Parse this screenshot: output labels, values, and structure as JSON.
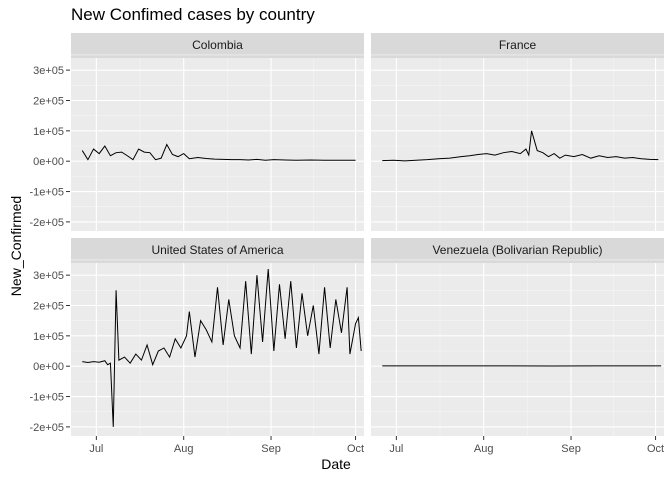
{
  "chart_data": {
    "type": "line",
    "title": "New Confimed cases by country",
    "xlabel": "Date",
    "ylabel": "New_Confirmed",
    "facet_layout": "2x2",
    "colors": {
      "panel_bg": "#EBEBEB",
      "strip_bg": "#D9D9D9",
      "grid_major": "#FFFFFF",
      "grid_minor": "#F5F5F5",
      "line": "#000000"
    },
    "x_range": [
      "2020-06-22",
      "2020-10-04"
    ],
    "x_ticks": [
      {
        "date": "2020-07-01",
        "label": "Jul"
      },
      {
        "date": "2020-08-01",
        "label": "Aug"
      },
      {
        "date": "2020-09-01",
        "label": "Sep"
      },
      {
        "date": "2020-10-01",
        "label": "Oct"
      }
    ],
    "ylim": [
      -230000,
      340000
    ],
    "y_ticks": [
      {
        "value": -200000,
        "label": "-2e+05"
      },
      {
        "value": -100000,
        "label": "-1e+05"
      },
      {
        "value": 0,
        "label": "0e+00"
      },
      {
        "value": 100000,
        "label": "1e+05"
      },
      {
        "value": 200000,
        "label": "2e+05"
      },
      {
        "value": 300000,
        "label": "3e+05"
      }
    ],
    "panels": [
      {
        "name": "Colombia",
        "points": [
          [
            "2020-06-26",
            35000
          ],
          [
            "2020-06-28",
            5000
          ],
          [
            "2020-06-30",
            40000
          ],
          [
            "2020-07-02",
            25000
          ],
          [
            "2020-07-04",
            50000
          ],
          [
            "2020-07-06",
            18000
          ],
          [
            "2020-07-08",
            28000
          ],
          [
            "2020-07-10",
            30000
          ],
          [
            "2020-07-12",
            18000
          ],
          [
            "2020-07-14",
            5000
          ],
          [
            "2020-07-16",
            40000
          ],
          [
            "2020-07-18",
            30000
          ],
          [
            "2020-07-20",
            28000
          ],
          [
            "2020-07-22",
            5000
          ],
          [
            "2020-07-24",
            10000
          ],
          [
            "2020-07-26",
            55000
          ],
          [
            "2020-07-28",
            22000
          ],
          [
            "2020-07-30",
            15000
          ],
          [
            "2020-08-01",
            25000
          ],
          [
            "2020-08-03",
            8000
          ],
          [
            "2020-08-06",
            12000
          ],
          [
            "2020-08-09",
            9000
          ],
          [
            "2020-08-12",
            7000
          ],
          [
            "2020-08-15",
            6000
          ],
          [
            "2020-08-18",
            5000
          ],
          [
            "2020-08-21",
            5000
          ],
          [
            "2020-08-24",
            4000
          ],
          [
            "2020-08-27",
            6000
          ],
          [
            "2020-08-30",
            3000
          ],
          [
            "2020-09-02",
            5000
          ],
          [
            "2020-09-06",
            4000
          ],
          [
            "2020-09-10",
            3000
          ],
          [
            "2020-09-15",
            4000
          ],
          [
            "2020-09-20",
            3000
          ],
          [
            "2020-09-25",
            3000
          ],
          [
            "2020-10-01",
            3000
          ]
        ]
      },
      {
        "name": "France",
        "points": [
          [
            "2020-06-26",
            2000
          ],
          [
            "2020-06-30",
            3000
          ],
          [
            "2020-07-04",
            1000
          ],
          [
            "2020-07-08",
            3000
          ],
          [
            "2020-07-12",
            5000
          ],
          [
            "2020-07-16",
            8000
          ],
          [
            "2020-07-20",
            10000
          ],
          [
            "2020-07-24",
            15000
          ],
          [
            "2020-07-27",
            18000
          ],
          [
            "2020-07-30",
            22000
          ],
          [
            "2020-08-02",
            25000
          ],
          [
            "2020-08-05",
            20000
          ],
          [
            "2020-08-08",
            28000
          ],
          [
            "2020-08-11",
            32000
          ],
          [
            "2020-08-14",
            25000
          ],
          [
            "2020-08-16",
            40000
          ],
          [
            "2020-08-17",
            20000
          ],
          [
            "2020-08-18",
            100000
          ],
          [
            "2020-08-20",
            35000
          ],
          [
            "2020-08-22",
            28000
          ],
          [
            "2020-08-24",
            15000
          ],
          [
            "2020-08-26",
            25000
          ],
          [
            "2020-08-28",
            10000
          ],
          [
            "2020-08-30",
            20000
          ],
          [
            "2020-09-02",
            15000
          ],
          [
            "2020-09-05",
            22000
          ],
          [
            "2020-09-08",
            10000
          ],
          [
            "2020-09-11",
            18000
          ],
          [
            "2020-09-14",
            12000
          ],
          [
            "2020-09-17",
            15000
          ],
          [
            "2020-09-20",
            10000
          ],
          [
            "2020-09-23",
            12000
          ],
          [
            "2020-09-26",
            8000
          ],
          [
            "2020-09-29",
            6000
          ],
          [
            "2020-10-02",
            5000
          ]
        ]
      },
      {
        "name": "United States of America",
        "points": [
          [
            "2020-06-26",
            15000
          ],
          [
            "2020-06-28",
            12000
          ],
          [
            "2020-06-30",
            15000
          ],
          [
            "2020-07-02",
            13000
          ],
          [
            "2020-07-04",
            18000
          ],
          [
            "2020-07-05",
            5000
          ],
          [
            "2020-07-06",
            10000
          ],
          [
            "2020-07-07",
            -200000
          ],
          [
            "2020-07-08",
            250000
          ],
          [
            "2020-07-09",
            20000
          ],
          [
            "2020-07-11",
            30000
          ],
          [
            "2020-07-13",
            10000
          ],
          [
            "2020-07-15",
            40000
          ],
          [
            "2020-07-17",
            20000
          ],
          [
            "2020-07-19",
            70000
          ],
          [
            "2020-07-21",
            5000
          ],
          [
            "2020-07-23",
            50000
          ],
          [
            "2020-07-25",
            60000
          ],
          [
            "2020-07-27",
            30000
          ],
          [
            "2020-07-29",
            90000
          ],
          [
            "2020-07-31",
            60000
          ],
          [
            "2020-08-02",
            100000
          ],
          [
            "2020-08-03",
            180000
          ],
          [
            "2020-08-05",
            30000
          ],
          [
            "2020-08-07",
            150000
          ],
          [
            "2020-08-09",
            120000
          ],
          [
            "2020-08-11",
            80000
          ],
          [
            "2020-08-13",
            260000
          ],
          [
            "2020-08-15",
            70000
          ],
          [
            "2020-08-17",
            220000
          ],
          [
            "2020-08-19",
            100000
          ],
          [
            "2020-08-21",
            60000
          ],
          [
            "2020-08-23",
            280000
          ],
          [
            "2020-08-25",
            40000
          ],
          [
            "2020-08-27",
            300000
          ],
          [
            "2020-08-29",
            80000
          ],
          [
            "2020-08-31",
            320000
          ],
          [
            "2020-09-02",
            50000
          ],
          [
            "2020-09-04",
            270000
          ],
          [
            "2020-09-06",
            90000
          ],
          [
            "2020-09-08",
            280000
          ],
          [
            "2020-09-10",
            60000
          ],
          [
            "2020-09-12",
            240000
          ],
          [
            "2020-09-14",
            100000
          ],
          [
            "2020-09-16",
            200000
          ],
          [
            "2020-09-18",
            40000
          ],
          [
            "2020-09-20",
            260000
          ],
          [
            "2020-09-22",
            60000
          ],
          [
            "2020-09-24",
            220000
          ],
          [
            "2020-09-26",
            110000
          ],
          [
            "2020-09-28",
            260000
          ],
          [
            "2020-09-29",
            40000
          ],
          [
            "2020-10-01",
            140000
          ],
          [
            "2020-10-02",
            160000
          ],
          [
            "2020-10-03",
            50000
          ]
        ]
      },
      {
        "name": "Venezuela (Bolivarian Republic)",
        "points": [
          [
            "2020-06-26",
            1000
          ],
          [
            "2020-07-10",
            1200
          ],
          [
            "2020-07-25",
            900
          ],
          [
            "2020-08-10",
            1000
          ],
          [
            "2020-08-25",
            800
          ],
          [
            "2020-09-10",
            900
          ],
          [
            "2020-09-25",
            1000
          ],
          [
            "2020-10-03",
            900
          ]
        ]
      }
    ]
  }
}
